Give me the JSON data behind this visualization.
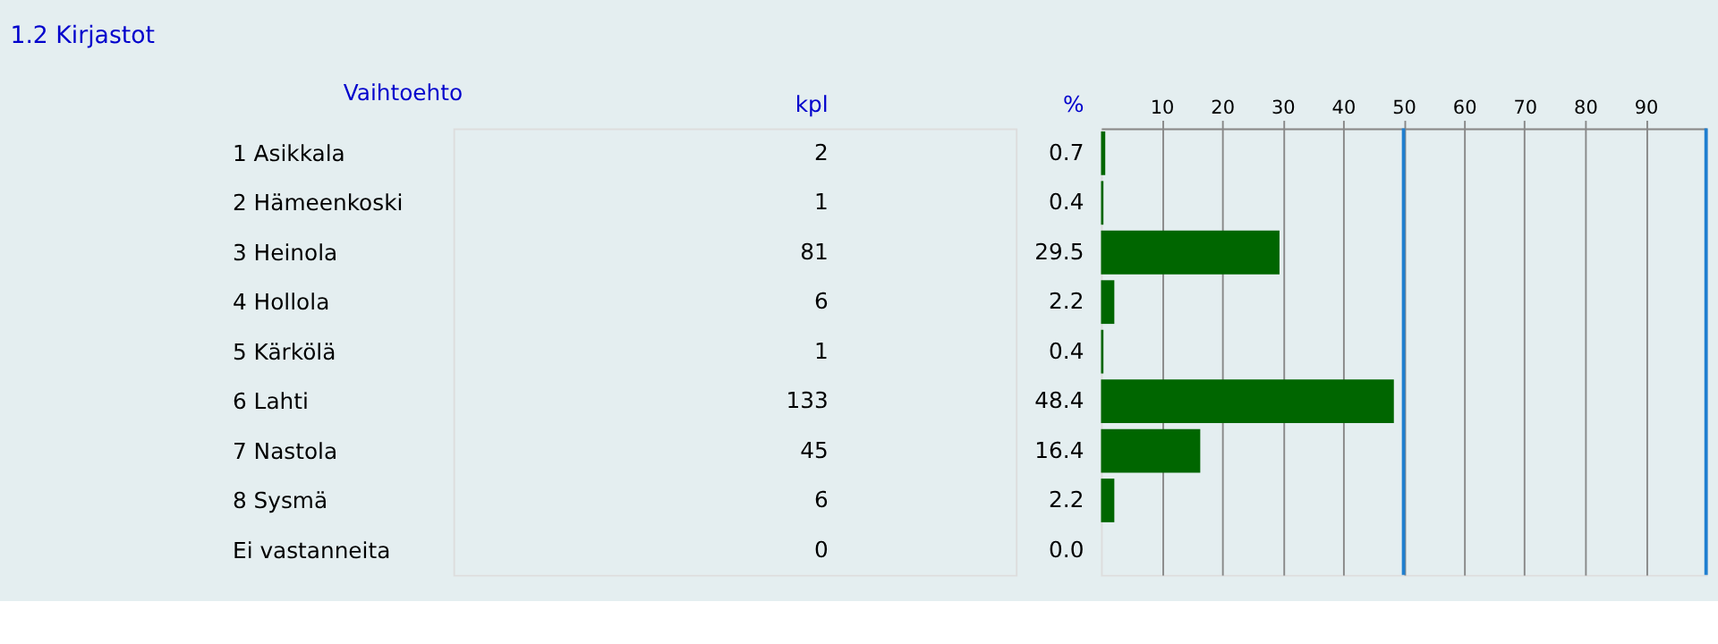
{
  "chart_data": [
    {
      "type": "other",
      "title": "1.2 Kirjastot",
      "ylabel": "Vaihtoehto",
      "data_labels": true,
      "categories": [
        "1 Asikkala",
        "2 Hämeenkoski",
        "3 Heinola",
        "4 Hollola",
        "5 Kärkölä",
        "6 Lahti",
        "7 Nastola",
        "8 Sysmä",
        "Ei vastanneita"
      ],
      "series": [
        {
          "name": "kpl",
          "values": [
            2,
            1,
            81,
            6,
            1,
            133,
            45,
            6,
            0
          ]
        },
        {
          "name": "%",
          "values": [
            0.7,
            0.4,
            29.5,
            2.2,
            0.4,
            48.4,
            16.4,
            2.2,
            0.0
          ],
          "value_labels": [
            "0.7",
            "0.4",
            "29.5",
            "2.2",
            "0.4",
            "48.4",
            "16.4",
            "2.2",
            "0.0"
          ]
        }
      ]
    },
    {
      "type": "bar",
      "orientation": "horizontal",
      "categories": [
        null,
        null,
        null,
        null,
        null,
        null,
        null,
        null,
        null
      ],
      "series": [
        {
          "color": "#006600",
          "values": [
            0.7,
            0.4,
            29.5,
            2.2,
            0.4,
            48.4,
            16.4,
            2.2,
            0.0
          ]
        }
      ],
      "xlim": [
        0,
        100
      ],
      "xticks": [
        10,
        20,
        30,
        40,
        50,
        60,
        70,
        80,
        90
      ],
      "grid": "x",
      "ref_lines": [
        {
          "axis": "x",
          "value": 50,
          "color": "#1f7fd0"
        },
        {
          "axis": "x",
          "value": 100,
          "color": "#1f7fd0"
        }
      ]
    }
  ]
}
